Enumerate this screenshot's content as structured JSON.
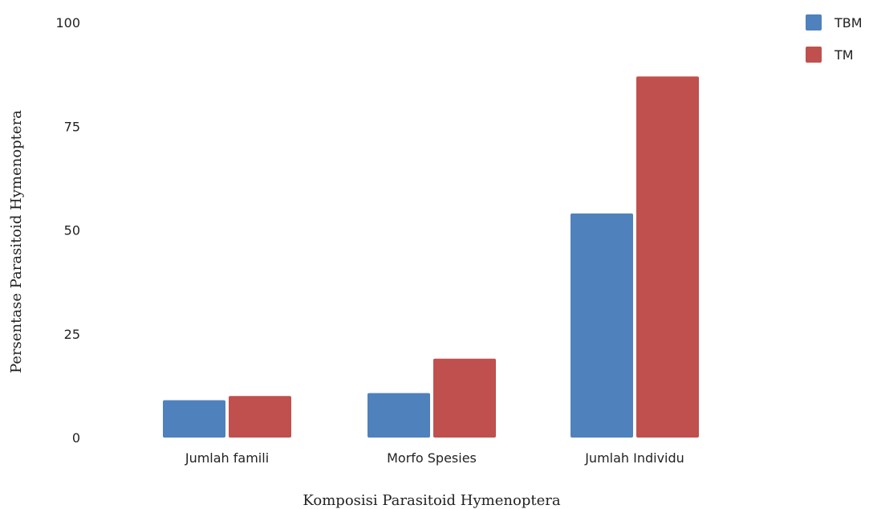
{
  "chart_data": {
    "type": "bar",
    "categories": [
      "Jumlah famili",
      "Morfo Spesies",
      "Jumlah Individu"
    ],
    "series": [
      {
        "name": "TBM",
        "values": [
          9,
          10.7,
          54
        ],
        "color": "#4f81bd"
      },
      {
        "name": "TM",
        "values": [
          10,
          19,
          87
        ],
        "color": "#c0504d"
      }
    ],
    "xlabel": "Komposisi Parasitoid Hymenoptera",
    "ylabel": "Persentase Parasitoid Hymenoptera",
    "ylim": [
      0,
      100
    ],
    "yticks": [
      0,
      25,
      50,
      75,
      100
    ],
    "grid": false,
    "legend": "top-right"
  }
}
